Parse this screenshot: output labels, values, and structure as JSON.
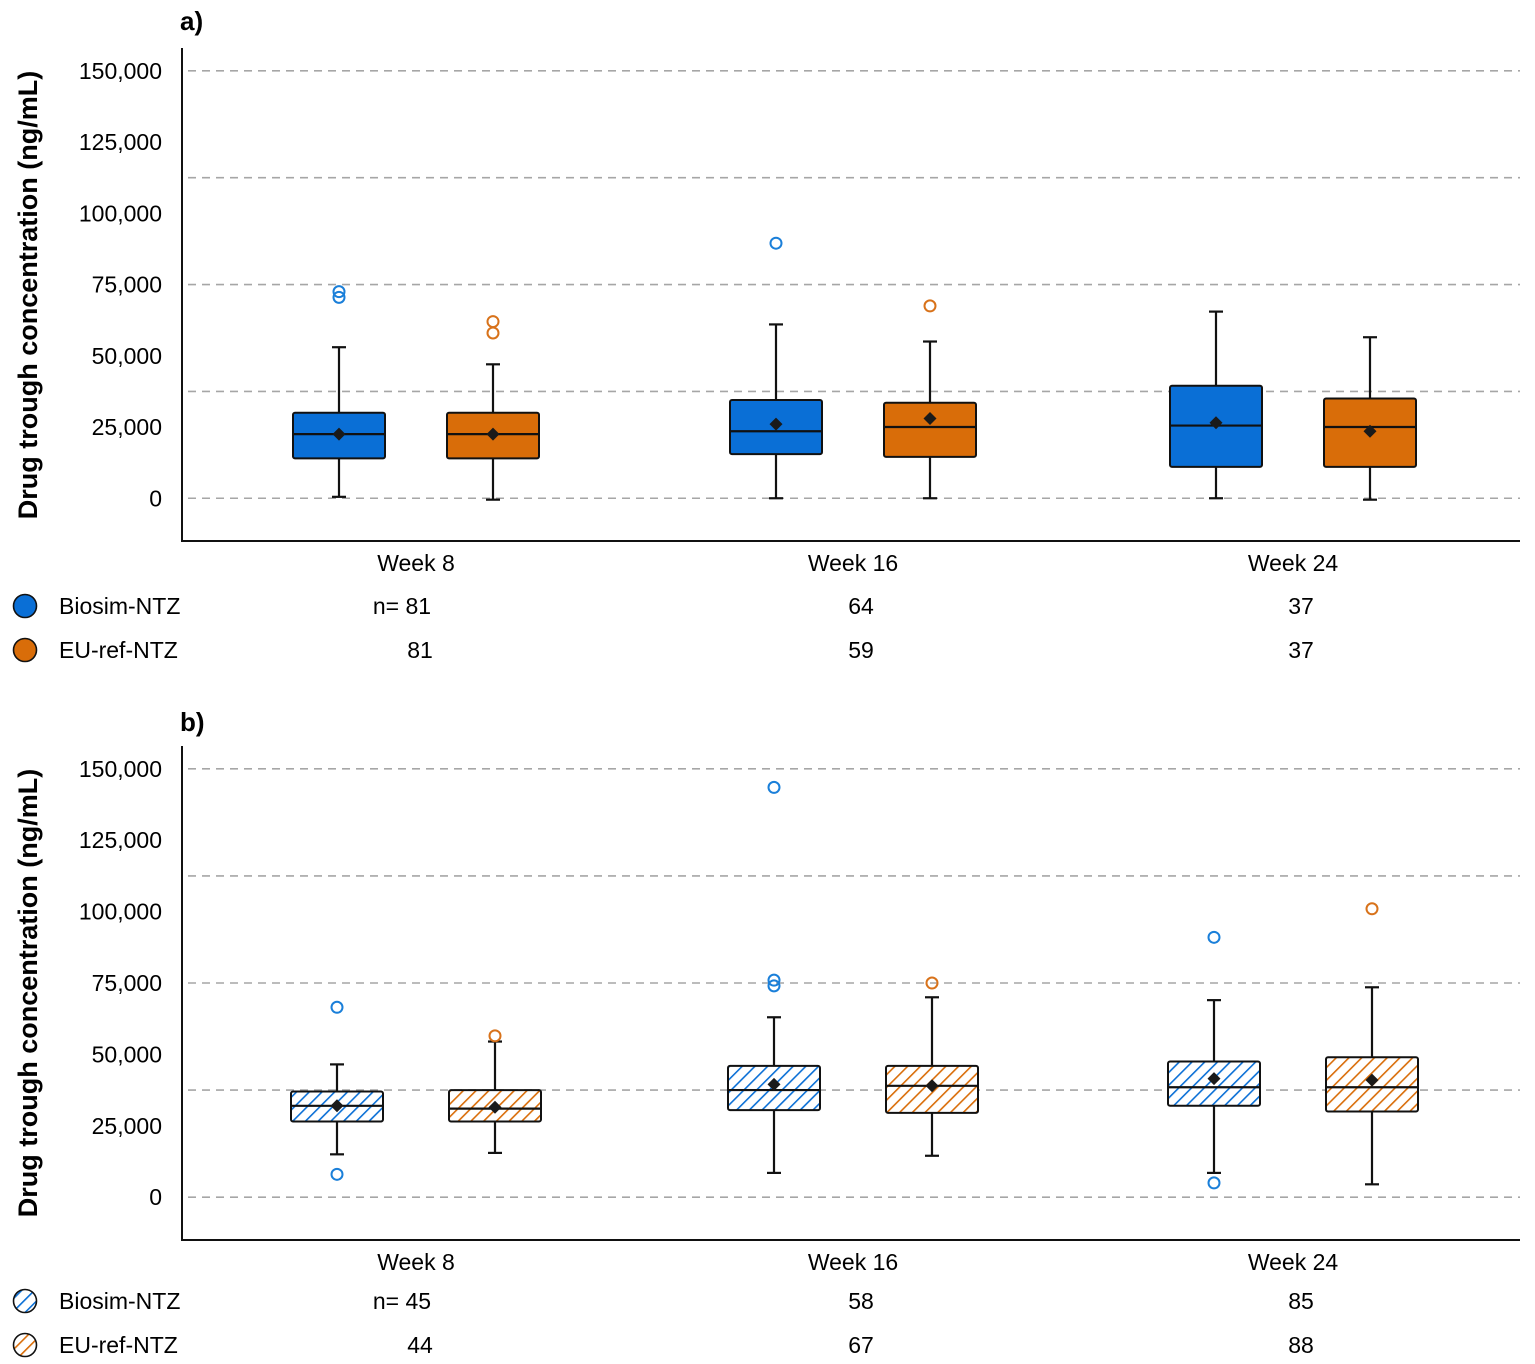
{
  "colors": {
    "biosim": "#0a6fd6",
    "euref": "#d96d09",
    "biosim_outlier": "#1a7fd9",
    "euref_outlier": "#d8721a",
    "grid": "#a6a6a6"
  },
  "chart_data": [
    {
      "type": "box",
      "panel_label": "a)",
      "ylabel": "Drug trough concentration (ng/mL)",
      "ylim": [
        -15000,
        158000
      ],
      "yticks": [
        0,
        25000,
        50000,
        75000,
        100000,
        125000,
        150000
      ],
      "ytick_labels": [
        "0",
        "25,000",
        "50,000",
        "75,000",
        "100,000",
        "125,000",
        "150,000"
      ],
      "gridlines": [
        0,
        37500,
        75000,
        112500,
        150000
      ],
      "categories": [
        "Week 8",
        "Week 16",
        "Week 24"
      ],
      "fill": "solid",
      "series": [
        {
          "name": "Biosim-NTZ",
          "color_key": "biosim",
          "n_prefix": "n= ",
          "n": [
            "81",
            "64",
            "37"
          ],
          "boxes": [
            {
              "min": 500,
              "q1": 14000,
              "median": 22500,
              "q3": 30000,
              "max": 53000,
              "mean": 22500,
              "outliers": [
                70500,
                72500
              ]
            },
            {
              "min": 0,
              "q1": 15500,
              "median": 23500,
              "q3": 34500,
              "max": 61000,
              "mean": 26000,
              "outliers": [
                89500
              ]
            },
            {
              "min": 0,
              "q1": 11000,
              "median": 25500,
              "q3": 39500,
              "max": 65500,
              "mean": 26500,
              "outliers": []
            }
          ]
        },
        {
          "name": "EU-ref-NTZ",
          "color_key": "euref",
          "n_prefix": "",
          "n": [
            "81",
            "59",
            "37"
          ],
          "boxes": [
            {
              "min": -500,
              "q1": 14000,
              "median": 22500,
              "q3": 30000,
              "max": 47000,
              "mean": 22500,
              "outliers": [
                58000,
                62000
              ]
            },
            {
              "min": 0,
              "q1": 14500,
              "median": 25000,
              "q3": 33500,
              "max": 55000,
              "mean": 28000,
              "outliers": [
                67500
              ]
            },
            {
              "min": -500,
              "q1": 11000,
              "median": 25000,
              "q3": 35000,
              "max": 56500,
              "mean": 23500,
              "outliers": []
            }
          ]
        }
      ]
    },
    {
      "type": "box",
      "panel_label": "b)",
      "ylabel": "Drug trough concentration (ng/mL)",
      "ylim": [
        -15000,
        158000
      ],
      "yticks": [
        0,
        25000,
        50000,
        75000,
        100000,
        125000,
        150000
      ],
      "ytick_labels": [
        "0",
        "25,000",
        "50,000",
        "75,000",
        "100,000",
        "125,000",
        "150,000"
      ],
      "gridlines": [
        0,
        37500,
        75000,
        112500,
        150000
      ],
      "categories": [
        "Week 8",
        "Week 16",
        "Week 24"
      ],
      "fill": "hatched",
      "series": [
        {
          "name": "Biosim-NTZ",
          "color_key": "biosim",
          "n_prefix": "n= ",
          "n": [
            "45",
            "58",
            "85"
          ],
          "boxes": [
            {
              "min": 15000,
              "q1": 26500,
              "median": 32000,
              "q3": 37000,
              "max": 46500,
              "mean": 32000,
              "outliers": [
                8000,
                66500
              ]
            },
            {
              "min": 8500,
              "q1": 30500,
              "median": 37500,
              "q3": 46000,
              "max": 63000,
              "mean": 39500,
              "outliers": [
                74000,
                76000,
                143500
              ]
            },
            {
              "min": 8500,
              "q1": 32000,
              "median": 38500,
              "q3": 47500,
              "max": 69000,
              "mean": 41500,
              "outliers": [
                5000,
                91000
              ]
            }
          ]
        },
        {
          "name": "EU-ref-NTZ",
          "color_key": "euref",
          "n_prefix": "",
          "n": [
            "44",
            "67",
            "88"
          ],
          "boxes": [
            {
              "min": 15500,
              "q1": 26500,
              "median": 31000,
              "q3": 37500,
              "max": 54500,
              "mean": 31500,
              "outliers": [
                56500
              ]
            },
            {
              "min": 14500,
              "q1": 29500,
              "median": 39000,
              "q3": 46000,
              "max": 70000,
              "mean": 39000,
              "outliers": [
                75000
              ]
            },
            {
              "min": 4500,
              "q1": 30000,
              "median": 38500,
              "q3": 49000,
              "max": 73500,
              "mean": 41000,
              "outliers": [
                101000
              ]
            }
          ]
        }
      ]
    }
  ]
}
